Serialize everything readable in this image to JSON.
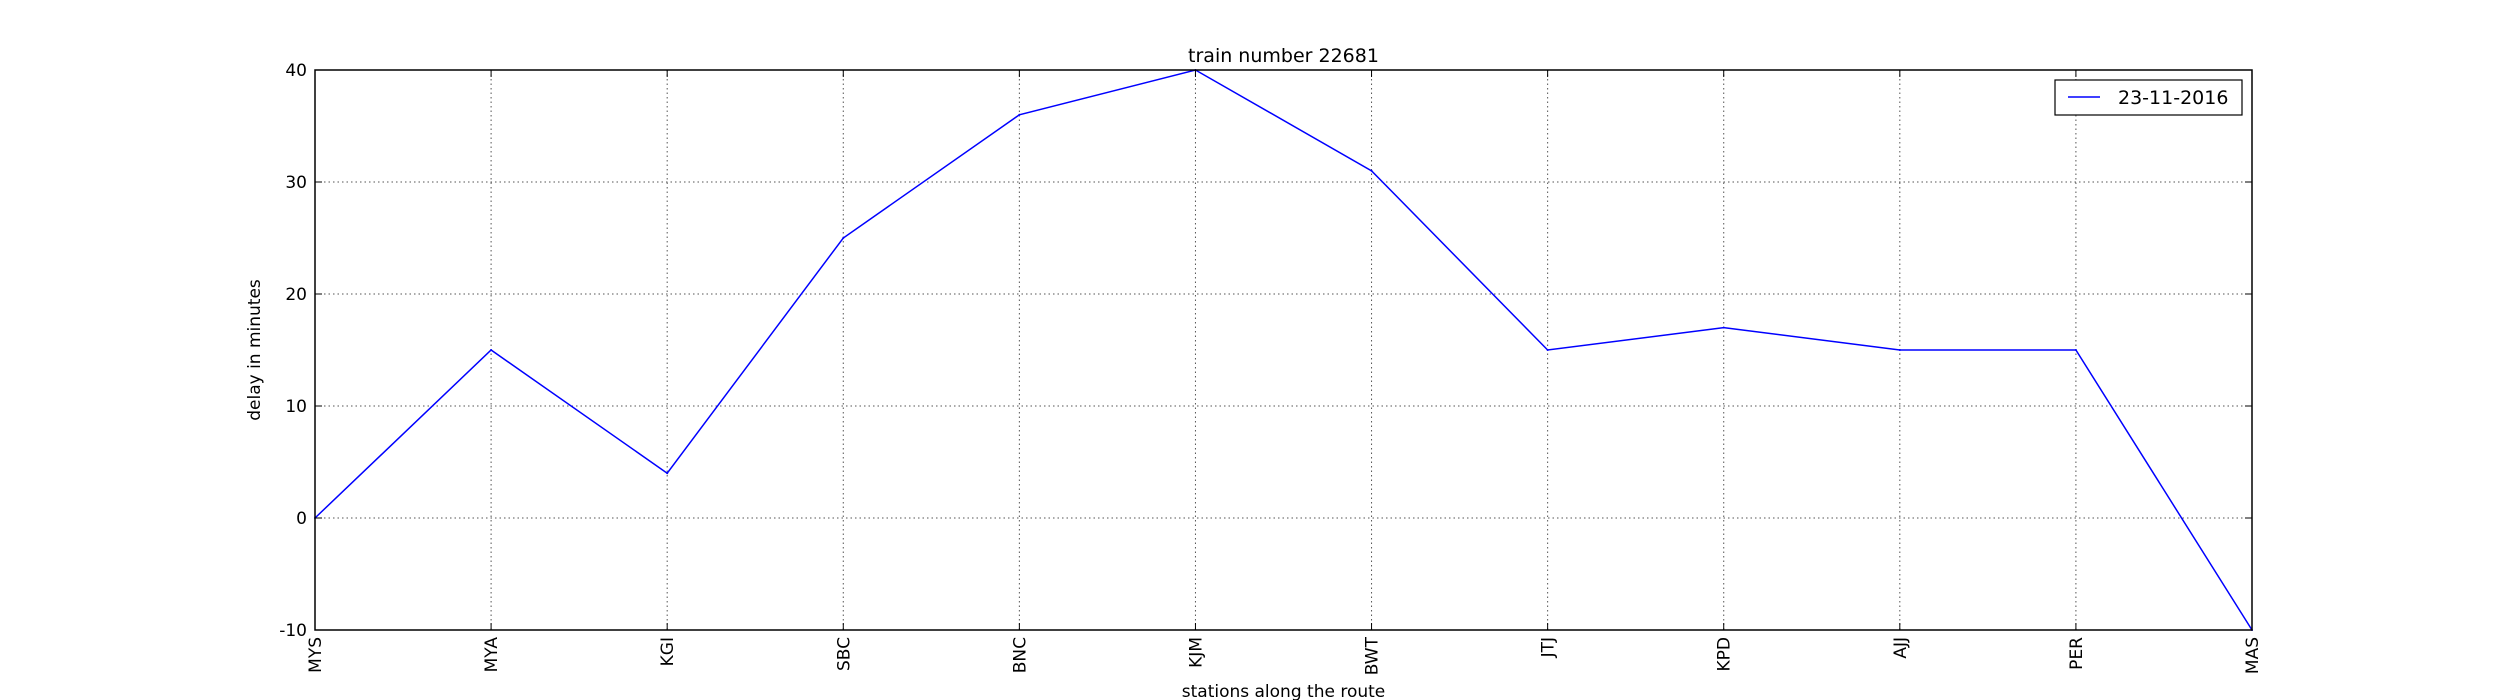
{
  "chart_data": {
    "type": "line",
    "title": "train number 22681",
    "xlabel": "stations along the route",
    "ylabel": "delay in minutes",
    "categories": [
      "MYS",
      "MYA",
      "KGI",
      "SBC",
      "BNC",
      "KJM",
      "BWT",
      "JTJ",
      "KPD",
      "AJJ",
      "PER",
      "MAS"
    ],
    "series": [
      {
        "name": "23-11-2016",
        "color": "#0000ff",
        "values": [
          0,
          15,
          4,
          25,
          36,
          40,
          31,
          15,
          17,
          15,
          15,
          -10
        ]
      }
    ],
    "ylim": [
      -10,
      40
    ],
    "yticks": [
      -10,
      0,
      10,
      20,
      30,
      40
    ],
    "grid": true,
    "grid_style": "dotted",
    "legend_position": "top-right"
  }
}
